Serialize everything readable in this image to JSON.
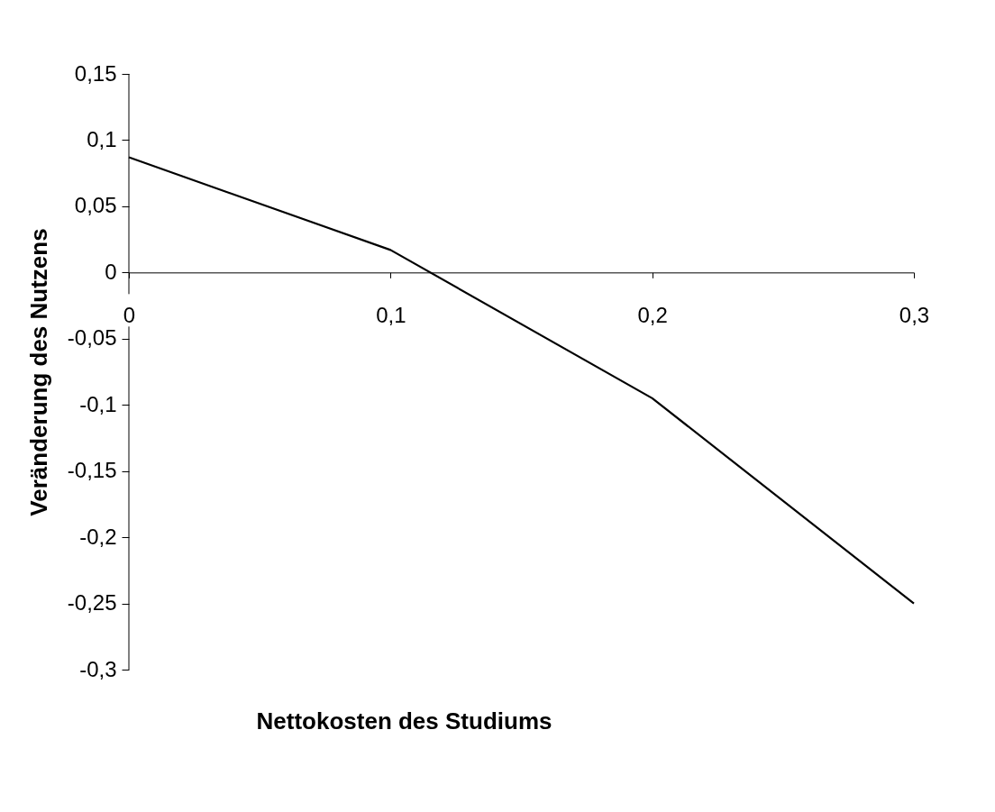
{
  "chart_data": {
    "type": "line",
    "xlabel": "Nettokosten des Studiums",
    "ylabel": "Veränderung des Nutzens",
    "x": [
      0,
      0.1,
      0.2,
      0.3
    ],
    "series": [
      {
        "color": "#000000",
        "values": [
          0.087,
          0.017,
          -0.095,
          -0.25
        ]
      }
    ],
    "xlim": [
      0,
      0.3
    ],
    "xticks": [
      {
        "value": 0,
        "label": "0"
      },
      {
        "value": 0.1,
        "label": "0,1"
      },
      {
        "value": 0.2,
        "label": "0,2"
      },
      {
        "value": 0.3,
        "label": "0,3"
      }
    ],
    "ylim": [
      -0.3,
      0.15
    ],
    "yticks": [
      {
        "value": 0.15,
        "label": "0,15"
      },
      {
        "value": 0.1,
        "label": "0,1"
      },
      {
        "value": 0.05,
        "label": "0,05"
      },
      {
        "value": 0,
        "label": "0"
      },
      {
        "value": -0.05,
        "label": "-0,05"
      },
      {
        "value": -0.1,
        "label": "-0,1"
      },
      {
        "value": -0.15,
        "label": "-0,15"
      },
      {
        "value": -0.2,
        "label": "-0,2"
      },
      {
        "value": -0.25,
        "label": "-0,25"
      },
      {
        "value": -0.3,
        "label": "-0,3"
      }
    ],
    "grid": false,
    "marker": "none",
    "line_style": "solid"
  }
}
